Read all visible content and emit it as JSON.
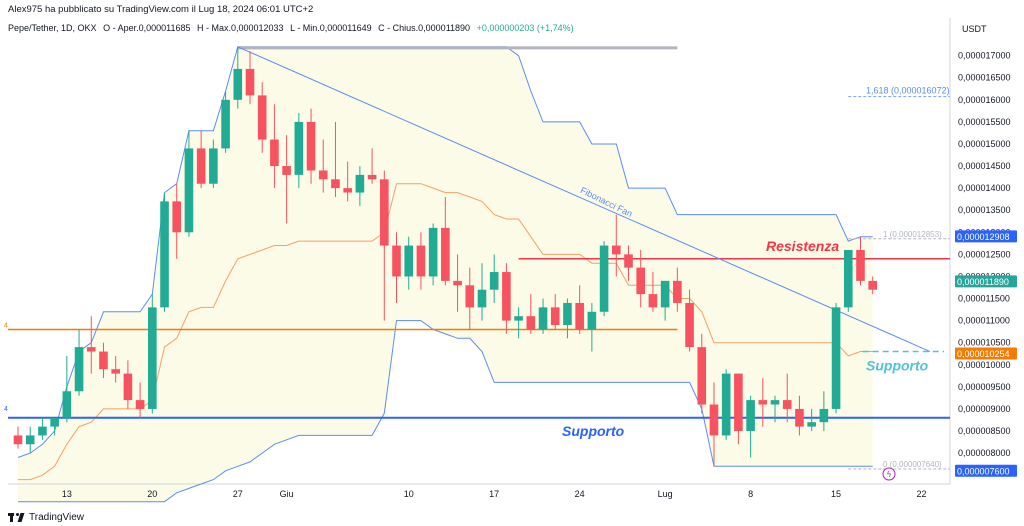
{
  "header": {
    "published": "Alex975 ha pubblicato su TradingView.com il Lug 18, 2024 06:01 UTC+2"
  },
  "legend": {
    "symbol": "Pepe/Tether, 1D, OKX",
    "open": "O - Aper.0,000011685",
    "high": "H - Max.0,000012033",
    "low": "L - Min.0,000011649",
    "close": "C - Chius.0,000011890",
    "change": "+0,000000203 (+1,74%)"
  },
  "footer": {
    "brand": "TradingView"
  },
  "colors": {
    "up": "#22ab94",
    "down": "#f7525f",
    "band": "#5b8def",
    "mid": "#f4a261",
    "res": "#f23645",
    "sup": "#2962ff",
    "orange": "#f57c00",
    "teal": "#26a69a"
  },
  "chart_data": {
    "type": "candlestick",
    "currency": "USDT",
    "ylim": [
      7.3e-06,
      1.74e-05
    ],
    "y_ticks": [
      "0,000017000",
      "0,000016500",
      "0,000016000",
      "0,000015500",
      "0,000015000",
      "0,000014500",
      "0,000014000",
      "0,000013500",
      "0,000013000",
      "0,000012500",
      "0,000012000",
      "0,000011500",
      "0,000011000",
      "0,000010500",
      "0,000010000",
      "0,000009500",
      "0,000009000",
      "0,000008500",
      "0,000008000"
    ],
    "x_ticks": [
      {
        "i": 4,
        "label": "13"
      },
      {
        "i": 11,
        "label": "20"
      },
      {
        "i": 18,
        "label": "27"
      },
      {
        "i": 22,
        "label": "Giu"
      },
      {
        "i": 32,
        "label": "10"
      },
      {
        "i": 39,
        "label": "17"
      },
      {
        "i": 46,
        "label": "24"
      },
      {
        "i": 53,
        "label": "Lug"
      },
      {
        "i": 60,
        "label": "8"
      },
      {
        "i": 67,
        "label": "15"
      },
      {
        "i": 74,
        "label": "22"
      }
    ],
    "ohlc": [
      [
        8.4e-06,
        8.6e-06,
        8.1e-06,
        8.2e-06
      ],
      [
        8.2e-06,
        8.6e-06,
        8e-06,
        8.4e-06
      ],
      [
        8.4e-06,
        8.8e-06,
        8.3e-06,
        8.6e-06
      ],
      [
        8.6e-06,
        8.8e-06,
        8.4e-06,
        8.8e-06
      ],
      [
        8.8e-06,
        1.02e-05,
        8.7e-06,
        9.4e-06
      ],
      [
        9.4e-06,
        1.08e-05,
        9.3e-06,
        1.04e-05
      ],
      [
        1.04e-05,
        1.11e-05,
        9.8e-06,
        1.03e-05
      ],
      [
        1.03e-05,
        1.05e-05,
        9.7e-06,
        9.9e-06
      ],
      [
        9.9e-06,
        1.02e-05,
        9.6e-06,
        9.8e-06
      ],
      [
        9.8e-06,
        1.01e-05,
        9e-06,
        9.2e-06
      ],
      [
        9.2e-06,
        9.6e-06,
        8.8e-06,
        9e-06
      ],
      [
        9e-06,
        1.16e-05,
        8.9e-06,
        1.13e-05
      ],
      [
        1.13e-05,
        1.39e-05,
        1.12e-05,
        1.37e-05
      ],
      [
        1.37e-05,
        1.41e-05,
        1.24e-05,
        1.3e-05
      ],
      [
        1.3e-05,
        1.53e-05,
        1.29e-05,
        1.49e-05
      ],
      [
        1.49e-05,
        1.53e-05,
        1.4e-05,
        1.41e-05
      ],
      [
        1.41e-05,
        1.51e-05,
        1.4e-05,
        1.49e-05
      ],
      [
        1.49e-05,
        1.62e-05,
        1.48e-05,
        1.6e-05
      ],
      [
        1.6e-05,
        1.72e-05,
        1.58e-05,
        1.67e-05
      ],
      [
        1.67e-05,
        1.71e-05,
        1.59e-05,
        1.61e-05
      ],
      [
        1.61e-05,
        1.64e-05,
        1.48e-05,
        1.51e-05
      ],
      [
        1.51e-05,
        1.59e-05,
        1.4e-05,
        1.45e-05
      ],
      [
        1.45e-05,
        1.52e-05,
        1.32e-05,
        1.43e-05
      ],
      [
        1.43e-05,
        1.57e-05,
        1.4e-05,
        1.55e-05
      ],
      [
        1.55e-05,
        1.58e-05,
        1.41e-05,
        1.44e-05
      ],
      [
        1.44e-05,
        1.51e-05,
        1.39e-05,
        1.42e-05
      ],
      [
        1.42e-05,
        1.55e-05,
        1.38e-05,
        1.4e-05
      ],
      [
        1.4e-05,
        1.46e-05,
        1.37e-05,
        1.39e-05
      ],
      [
        1.39e-05,
        1.45e-05,
        1.36e-05,
        1.43e-05
      ],
      [
        1.43e-05,
        1.49e-05,
        1.41e-05,
        1.42e-05
      ],
      [
        1.42e-05,
        1.44e-05,
        1.1e-05,
        1.27e-05
      ],
      [
        1.27e-05,
        1.3e-05,
        1.14e-05,
        1.2e-05
      ],
      [
        1.2e-05,
        1.29e-05,
        1.17e-05,
        1.27e-05
      ],
      [
        1.27e-05,
        1.3e-05,
        1.17e-05,
        1.2e-05
      ],
      [
        1.2e-05,
        1.32e-05,
        1.18e-05,
        1.31e-05
      ],
      [
        1.31e-05,
        1.38e-05,
        1.18e-05,
        1.19e-05
      ],
      [
        1.19e-05,
        1.25e-05,
        1.12e-05,
        1.18e-05
      ],
      [
        1.18e-05,
        1.22e-05,
        1.08e-05,
        1.13e-05
      ],
      [
        1.13e-05,
        1.23e-05,
        1.1e-05,
        1.17e-05
      ],
      [
        1.17e-05,
        1.25e-05,
        1.14e-05,
        1.21e-05
      ],
      [
        1.21e-05,
        1.23e-05,
        1.07e-05,
        1.1e-05
      ],
      [
        1.1e-05,
        1.13e-05,
        1.06e-05,
        1.11e-05
      ],
      [
        1.11e-05,
        1.16e-05,
        1.07e-05,
        1.08e-05
      ],
      [
        1.08e-05,
        1.15e-05,
        1.07e-05,
        1.13e-05
      ],
      [
        1.13e-05,
        1.16e-05,
        1.08e-05,
        1.09e-05
      ],
      [
        1.09e-05,
        1.15e-05,
        1.06e-05,
        1.14e-05
      ],
      [
        1.14e-05,
        1.18e-05,
        1.07e-05,
        1.08e-05
      ],
      [
        1.08e-05,
        1.14e-05,
        1.03e-05,
        1.12e-05
      ],
      [
        1.12e-05,
        1.28e-05,
        1.11e-05,
        1.27e-05
      ],
      [
        1.27e-05,
        1.34e-05,
        1.2e-05,
        1.25e-05
      ],
      [
        1.25e-05,
        1.27e-05,
        1.19e-05,
        1.22e-05
      ],
      [
        1.22e-05,
        1.26e-05,
        1.13e-05,
        1.16e-05
      ],
      [
        1.16e-05,
        1.21e-05,
        1.12e-05,
        1.13e-05
      ],
      [
        1.13e-05,
        1.19e-05,
        1.1e-05,
        1.19e-05
      ],
      [
        1.19e-05,
        1.22e-05,
        1.12e-05,
        1.14e-05
      ],
      [
        1.14e-05,
        1.17e-05,
        1.03e-05,
        1.04e-05
      ],
      [
        1.04e-05,
        1.07e-05,
        8.9e-06,
        9.1e-06
      ],
      [
        9.1e-06,
        9.6e-06,
        7.7e-06,
        8.4e-06
      ],
      [
        8.4e-06,
        9.9e-06,
        8.3e-06,
        9.8e-06
      ],
      [
        9.8e-06,
        9.8e-06,
        8.2e-06,
        8.5e-06
      ],
      [
        8.5e-06,
        9.3e-06,
        7.9e-06,
        9.2e-06
      ],
      [
        9.2e-06,
        9.7e-06,
        8.6e-06,
        9.1e-06
      ],
      [
        9.1e-06,
        9.3e-06,
        8.7e-06,
        9.2e-06
      ],
      [
        9.2e-06,
        9.8e-06,
        8.7e-06,
        9e-06
      ],
      [
        9e-06,
        9.3e-06,
        8.4e-06,
        8.6e-06
      ],
      [
        8.6e-06,
        9e-06,
        8.5e-06,
        8.7e-06
      ],
      [
        8.7e-06,
        9.4e-06,
        8.5e-06,
        9e-06
      ],
      [
        9e-06,
        1.14e-05,
        8.9e-06,
        1.13e-05
      ],
      [
        1.13e-05,
        1.26e-05,
        1.12e-05,
        1.26e-05
      ],
      [
        1.26e-05,
        1.29e-05,
        1.18e-05,
        1.19e-05
      ],
      [
        1.19e-05,
        1.2e-05,
        1.16e-05,
        1.17e-05
      ]
    ],
    "upper_band": [
      7.9e-06,
      8e-06,
      8.2e-06,
      8.5e-06,
      9.5e-06,
      1.03e-05,
      1.05e-05,
      1.12e-05,
      1.12e-05,
      1.12e-05,
      1.12e-05,
      1.16e-05,
      1.39e-05,
      1.41e-05,
      1.53e-05,
      1.53e-05,
      1.53e-05,
      1.62e-05,
      1.72e-05,
      1.72e-05,
      1.72e-05,
      1.72e-05,
      1.72e-05,
      1.72e-05,
      1.72e-05,
      1.72e-05,
      1.72e-05,
      1.72e-05,
      1.72e-05,
      1.72e-05,
      1.72e-05,
      1.72e-05,
      1.72e-05,
      1.72e-05,
      1.72e-05,
      1.72e-05,
      1.72e-05,
      1.72e-05,
      1.72e-05,
      1.72e-05,
      1.72e-05,
      1.7e-05,
      1.62e-05,
      1.55e-05,
      1.55e-05,
      1.55e-05,
      1.55e-05,
      1.5e-05,
      1.5e-05,
      1.5e-05,
      1.4e-05,
      1.4e-05,
      1.4e-05,
      1.4e-05,
      1.34e-05,
      1.34e-05,
      1.34e-05,
      1.34e-05,
      1.34e-05,
      1.34e-05,
      1.34e-05,
      1.34e-05,
      1.34e-05,
      1.34e-05,
      1.34e-05,
      1.34e-05,
      1.34e-05,
      1.34e-05,
      1.28e-05,
      1.29e-05,
      1.29e-05
    ],
    "lower_band": [
      6.9e-06,
      6.9e-06,
      6.9e-06,
      6.9e-06,
      6.9e-06,
      6.9e-06,
      6.9e-06,
      6.9e-06,
      6.9e-06,
      6.9e-06,
      6.9e-06,
      6.9e-06,
      6.9e-06,
      7.1e-06,
      7.2e-06,
      7.3e-06,
      7.4e-06,
      7.6e-06,
      7.7e-06,
      7.8e-06,
      8e-06,
      8.2e-06,
      8.3e-06,
      8.4e-06,
      8.4e-06,
      8.4e-06,
      8.4e-06,
      8.4e-06,
      8.4e-06,
      8.4e-06,
      8.9e-06,
      1.1e-05,
      1.1e-05,
      1.1e-05,
      1.08e-05,
      1.07e-05,
      1.06e-05,
      1.06e-05,
      1.03e-05,
      9.6e-06,
      9.6e-06,
      9.6e-06,
      9.6e-06,
      9.6e-06,
      9.6e-06,
      9.6e-06,
      9.6e-06,
      9.6e-06,
      9.6e-06,
      9.6e-06,
      9.6e-06,
      9.6e-06,
      9.6e-06,
      9.6e-06,
      9.6e-06,
      9.6e-06,
      9e-06,
      7.7e-06,
      7.7e-06,
      7.7e-06,
      7.7e-06,
      7.7e-06,
      7.7e-06,
      7.7e-06,
      7.7e-06,
      7.7e-06,
      7.7e-06,
      7.7e-06,
      7.7e-06,
      7.7e-06,
      7.7e-06
    ],
    "mid_band": [
      7.4e-06,
      7.4e-06,
      7.5e-06,
      7.7e-06,
      8.2e-06,
      8.6e-06,
      8.7e-06,
      9e-06,
      9e-06,
      9e-06,
      9e-06,
      9.2e-06,
      1.04e-05,
      1.06e-05,
      1.12e-05,
      1.13e-05,
      1.13e-05,
      1.19e-05,
      1.24e-05,
      1.25e-05,
      1.26e-05,
      1.27e-05,
      1.27e-05,
      1.28e-05,
      1.28e-05,
      1.28e-05,
      1.28e-05,
      1.28e-05,
      1.28e-05,
      1.28e-05,
      1.3e-05,
      1.41e-05,
      1.41e-05,
      1.41e-05,
      1.4e-05,
      1.39e-05,
      1.39e-05,
      1.38e-05,
      1.37e-05,
      1.34e-05,
      1.33e-05,
      1.33e-05,
      1.29e-05,
      1.25e-05,
      1.25e-05,
      1.25e-05,
      1.25e-05,
      1.23e-05,
      1.23e-05,
      1.23e-05,
      1.18e-05,
      1.18e-05,
      1.18e-05,
      1.18e-05,
      1.15e-05,
      1.15e-05,
      1.12e-05,
      1.05e-05,
      1.05e-05,
      1.05e-05,
      1.05e-05,
      1.05e-05,
      1.05e-05,
      1.05e-05,
      1.05e-05,
      1.05e-05,
      1.05e-05,
      1.05e-05,
      1.02e-05,
      1.03e-05,
      1.03e-05
    ],
    "levels": {
      "resistance": 1.24e-05,
      "support_low": 8.8e-06,
      "support_mid": 1.03e-05,
      "orange_line": 1.08e-05,
      "fib_1618": 1.6072e-05,
      "fib_1": 1.2853e-05,
      "fib_0": 7.64e-06
    },
    "price_labels": {
      "fib_1618": "1,618 (0,000016072)",
      "fib_1": "1 (0,000012853)",
      "fib_0": "0 (0,000007640)",
      "tag_high": "0,000012908",
      "tag_last": "0,000011890",
      "tag_support": "0,000010254",
      "tag_low": "0,000007600"
    },
    "annotations": {
      "fan": "Fibonacci Fan",
      "resistance": "Resistenza",
      "support_right": "Supporto",
      "support_low": "Supporto"
    }
  }
}
